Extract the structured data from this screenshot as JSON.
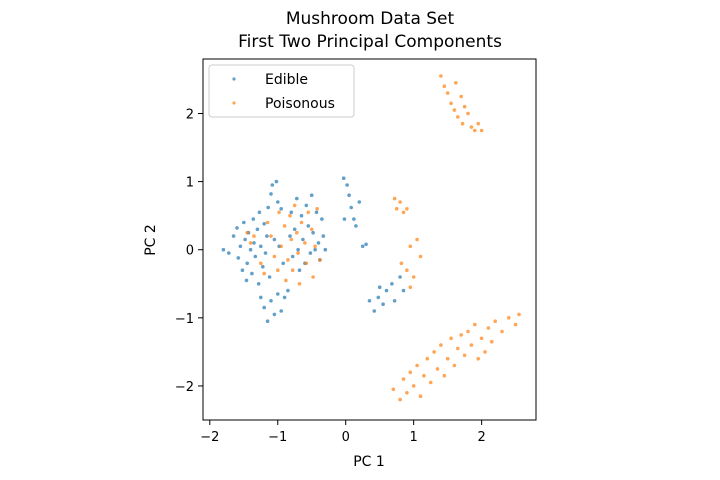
{
  "chart_data": {
    "type": "scatter",
    "title": "Mushroom Data Set",
    "subtitle": "First Two Principal Components",
    "xlabel": "PC 1",
    "ylabel": "PC 2",
    "xlim": [
      -2.1,
      2.8
    ],
    "ylim": [
      -2.5,
      2.8
    ],
    "xticks": [
      -2,
      -1,
      0,
      1,
      2
    ],
    "xtick_labels": [
      "−2",
      "−1",
      "0",
      "1",
      "2"
    ],
    "yticks": [
      -2,
      -1,
      0,
      1,
      2
    ],
    "ytick_labels": [
      "−2",
      "−1",
      "0",
      "1",
      "2"
    ],
    "grid": false,
    "legend_position": "top-left",
    "series": [
      {
        "name": "Edible",
        "color": "#1f77b4",
        "points": [
          [
            -1.8,
            0.0
          ],
          [
            -1.72,
            -0.05
          ],
          [
            -1.65,
            0.2
          ],
          [
            -1.6,
            0.32
          ],
          [
            -1.58,
            -0.12
          ],
          [
            -1.55,
            0.05
          ],
          [
            -1.52,
            -0.3
          ],
          [
            -1.5,
            0.4
          ],
          [
            -1.48,
            0.15
          ],
          [
            -1.46,
            -0.45
          ],
          [
            -1.45,
            -0.2
          ],
          [
            -1.43,
            0.25
          ],
          [
            -1.4,
            0.0
          ],
          [
            -1.38,
            -0.35
          ],
          [
            -1.36,
            0.45
          ],
          [
            -1.35,
            0.1
          ],
          [
            -1.33,
            -0.1
          ],
          [
            -1.3,
            0.3
          ],
          [
            -1.28,
            -0.5
          ],
          [
            -1.27,
            0.55
          ],
          [
            -1.25,
            0.05
          ],
          [
            -1.22,
            -0.25
          ],
          [
            -1.2,
            0.38
          ],
          [
            -1.18,
            -0.05
          ],
          [
            -1.16,
            0.2
          ],
          [
            -1.14,
            0.62
          ],
          [
            -1.12,
            -0.4
          ],
          [
            -1.1,
            0.82
          ],
          [
            -1.08,
            0.95
          ],
          [
            -1.05,
            0.15
          ],
          [
            -1.02,
            1.0
          ],
          [
            -1.0,
            0.7
          ],
          [
            -0.98,
            0.05
          ],
          [
            -0.95,
            0.6
          ],
          [
            -0.92,
            -0.2
          ],
          [
            -1.25,
            -0.7
          ],
          [
            -1.2,
            -0.85
          ],
          [
            -1.15,
            -1.05
          ],
          [
            -1.1,
            -0.75
          ],
          [
            -1.05,
            -0.95
          ],
          [
            -1.0,
            -0.65
          ],
          [
            -0.95,
            -0.9
          ],
          [
            -0.9,
            -0.7
          ],
          [
            -0.85,
            -0.6
          ],
          [
            -0.82,
            0.2
          ],
          [
            -0.8,
            0.55
          ],
          [
            -0.78,
            -0.1
          ],
          [
            -0.75,
            0.3
          ],
          [
            -0.72,
            0.75
          ],
          [
            -0.7,
            0.0
          ],
          [
            -0.68,
            -0.3
          ],
          [
            -0.65,
            0.5
          ],
          [
            -0.63,
            0.15
          ],
          [
            -0.6,
            -0.2
          ],
          [
            -0.58,
            0.65
          ],
          [
            -0.55,
            0.35
          ],
          [
            -0.52,
            -0.05
          ],
          [
            -0.5,
            0.8
          ],
          [
            -0.48,
            0.25
          ],
          [
            -0.45,
            0.0
          ],
          [
            -0.43,
            0.55
          ],
          [
            -0.4,
            0.1
          ],
          [
            -0.38,
            -0.15
          ],
          [
            -0.35,
            0.45
          ],
          [
            -0.33,
            0.2
          ],
          [
            -0.3,
            0.0
          ],
          [
            -0.03,
            1.05
          ],
          [
            0.02,
            0.95
          ],
          [
            0.05,
            0.8
          ],
          [
            0.08,
            0.62
          ],
          [
            0.12,
            0.45
          ],
          [
            0.15,
            0.35
          ],
          [
            0.2,
            0.7
          ],
          [
            -0.02,
            0.45
          ],
          [
            0.25,
            0.05
          ],
          [
            0.3,
            0.08
          ],
          [
            0.35,
            -0.75
          ],
          [
            0.42,
            -0.9
          ],
          [
            0.48,
            -0.7
          ],
          [
            0.5,
            -0.55
          ],
          [
            0.55,
            -0.8
          ],
          [
            0.6,
            -0.6
          ],
          [
            0.68,
            -0.5
          ],
          [
            0.72,
            -0.75
          ],
          [
            0.8,
            -0.4
          ],
          [
            0.85,
            -0.6
          ]
        ]
      },
      {
        "name": "Poisonous",
        "color": "#ff7f0e",
        "points": [
          [
            -1.45,
            0.25
          ],
          [
            -1.4,
            0.1
          ],
          [
            -1.35,
            0.2
          ],
          [
            -1.25,
            -0.2
          ],
          [
            -1.2,
            -0.35
          ],
          [
            -1.15,
            0.4
          ],
          [
            -1.1,
            0.2
          ],
          [
            -1.05,
            -0.1
          ],
          [
            -1.0,
            -0.3
          ],
          [
            -0.98,
            0.55
          ],
          [
            -0.95,
            0.05
          ],
          [
            -0.9,
            0.35
          ],
          [
            -0.88,
            -0.45
          ],
          [
            -0.85,
            -0.15
          ],
          [
            -0.82,
            0.5
          ],
          [
            -0.8,
            0.15
          ],
          [
            -0.78,
            -0.3
          ],
          [
            -0.75,
            0.65
          ],
          [
            -0.72,
            0.25
          ],
          [
            -0.7,
            -0.05
          ],
          [
            -0.68,
            -0.5
          ],
          [
            -0.65,
            0.4
          ],
          [
            -0.6,
            0.1
          ],
          [
            -0.58,
            -0.2
          ],
          [
            -0.55,
            0.55
          ],
          [
            -0.5,
            0.3
          ],
          [
            -0.48,
            -0.4
          ],
          [
            -0.45,
            0.05
          ],
          [
            -0.42,
            0.6
          ],
          [
            -0.38,
            -0.15
          ],
          [
            0.72,
            0.75
          ],
          [
            0.8,
            0.7
          ],
          [
            0.85,
            0.55
          ],
          [
            0.75,
            0.6
          ],
          [
            0.9,
            0.6
          ],
          [
            0.82,
            -0.2
          ],
          [
            0.9,
            -0.3
          ],
          [
            0.95,
            0.05
          ],
          [
            1.0,
            -0.4
          ],
          [
            1.05,
            0.15
          ],
          [
            1.1,
            -0.1
          ],
          [
            0.95,
            -0.55
          ],
          [
            1.4,
            2.55
          ],
          [
            1.45,
            2.4
          ],
          [
            1.5,
            2.3
          ],
          [
            1.55,
            2.15
          ],
          [
            1.6,
            2.05
          ],
          [
            1.62,
            2.45
          ],
          [
            1.65,
            1.95
          ],
          [
            1.7,
            2.25
          ],
          [
            1.72,
            1.85
          ],
          [
            1.75,
            2.1
          ],
          [
            1.8,
            2.0
          ],
          [
            1.85,
            1.8
          ],
          [
            1.9,
            1.75
          ],
          [
            1.95,
            1.85
          ],
          [
            2.0,
            1.75
          ],
          [
            0.7,
            -2.05
          ],
          [
            0.8,
            -2.2
          ],
          [
            0.85,
            -1.9
          ],
          [
            0.9,
            -2.1
          ],
          [
            0.95,
            -1.8
          ],
          [
            1.0,
            -2.0
          ],
          [
            1.05,
            -1.7
          ],
          [
            1.1,
            -2.15
          ],
          [
            1.15,
            -1.85
          ],
          [
            1.2,
            -1.6
          ],
          [
            1.25,
            -1.95
          ],
          [
            1.3,
            -1.5
          ],
          [
            1.35,
            -1.75
          ],
          [
            1.4,
            -1.4
          ],
          [
            1.45,
            -1.85
          ],
          [
            1.5,
            -1.6
          ],
          [
            1.55,
            -1.3
          ],
          [
            1.6,
            -1.7
          ],
          [
            1.65,
            -1.45
          ],
          [
            1.7,
            -1.25
          ],
          [
            1.75,
            -1.55
          ],
          [
            1.8,
            -1.2
          ],
          [
            1.85,
            -1.4
          ],
          [
            1.9,
            -1.1
          ],
          [
            1.95,
            -1.6
          ],
          [
            2.0,
            -1.3
          ],
          [
            2.05,
            -1.5
          ],
          [
            2.1,
            -1.15
          ],
          [
            2.15,
            -1.35
          ],
          [
            2.2,
            -1.05
          ],
          [
            2.3,
            -1.2
          ],
          [
            2.4,
            -1.0
          ],
          [
            2.5,
            -1.1
          ],
          [
            2.55,
            -0.95
          ]
        ]
      }
    ]
  }
}
